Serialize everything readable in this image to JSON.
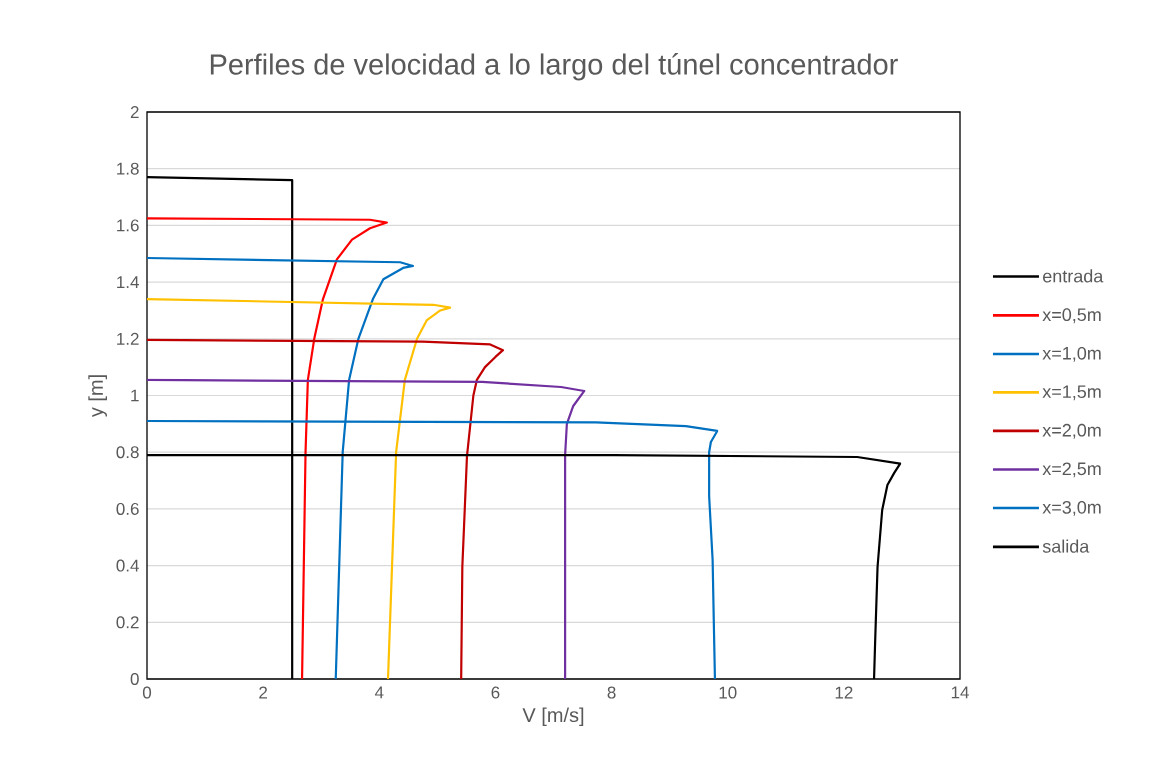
{
  "chart_data": {
    "type": "line",
    "title": "Perfiles de velocidad a lo largo del túnel concentrador",
    "xlabel": "V [m/s]",
    "ylabel": "y [m]",
    "xlim": [
      0,
      14
    ],
    "ylim": [
      0,
      2
    ],
    "xticks": [
      0,
      2,
      4,
      6,
      8,
      10,
      12,
      14
    ],
    "yticks": [
      0,
      0.2,
      0.4,
      0.6,
      0.8,
      1,
      1.2,
      1.4,
      1.6,
      1.8,
      2
    ],
    "grid": "y",
    "legend": "right",
    "series": [
      {
        "name": "entrada",
        "color": "#000000",
        "x": [
          2.5,
          2.5,
          0
        ],
        "values": [
          0,
          1.76,
          1.77
        ]
      },
      {
        "name": "x=0,5m",
        "color": "#ff0000",
        "x": [
          2.67,
          2.73,
          2.77,
          2.88,
          3.03,
          3.27,
          3.53,
          3.84,
          4.13,
          3.84,
          0
        ],
        "values": [
          0,
          0.8,
          1.055,
          1.2,
          1.34,
          1.48,
          1.55,
          1.59,
          1.61,
          1.62,
          1.625
        ]
      },
      {
        "name": "x=1,0m",
        "color": "#0070c0",
        "x": [
          3.25,
          3.37,
          3.48,
          3.64,
          3.89,
          4.07,
          4.41,
          4.58,
          4.36,
          0
        ],
        "values": [
          0,
          0.8,
          1.055,
          1.2,
          1.34,
          1.41,
          1.45,
          1.457,
          1.47,
          1.485
        ]
      },
      {
        "name": "x=1,5m",
        "color": "#ffc000",
        "x": [
          4.15,
          4.29,
          4.44,
          4.65,
          4.82,
          5.05,
          5.22,
          4.93,
          0
        ],
        "values": [
          0,
          0.8,
          1.055,
          1.2,
          1.266,
          1.3,
          1.31,
          1.32,
          1.34
        ]
      },
      {
        "name": "x=2,0m",
        "color": "#c00000",
        "x": [
          5.41,
          5.43,
          5.51,
          5.62,
          5.68,
          5.82,
          6.0,
          6.13,
          5.91,
          4.75,
          0
        ],
        "values": [
          0,
          0.395,
          0.786,
          1.0,
          1.055,
          1.1,
          1.136,
          1.16,
          1.18,
          1.19,
          1.196
        ]
      },
      {
        "name": "x=2,5m",
        "color": "#7030a0",
        "x": [
          7.2,
          7.2,
          7.23,
          7.34,
          7.53,
          7.13,
          5.77,
          0
        ],
        "values": [
          0,
          0.79,
          0.9,
          0.963,
          1.016,
          1.03,
          1.048,
          1.055
        ]
      },
      {
        "name": "x=3,0m",
        "color": "#0070c0",
        "x": [
          9.78,
          9.76,
          9.74,
          9.68,
          9.68,
          9.71,
          9.82,
          9.28,
          7.73,
          0
        ],
        "values": [
          0,
          0.205,
          0.42,
          0.645,
          0.8,
          0.836,
          0.875,
          0.892,
          0.905,
          0.91
        ]
      },
      {
        "name": "salida",
        "color": "#000000",
        "x": [
          12.52,
          12.54,
          12.58,
          12.66,
          12.75,
          12.87,
          12.97,
          12.23,
          8.04,
          0
        ],
        "values": [
          0,
          0.14,
          0.395,
          0.596,
          0.684,
          0.728,
          0.76,
          0.783,
          0.79,
          0.79
        ]
      }
    ]
  }
}
